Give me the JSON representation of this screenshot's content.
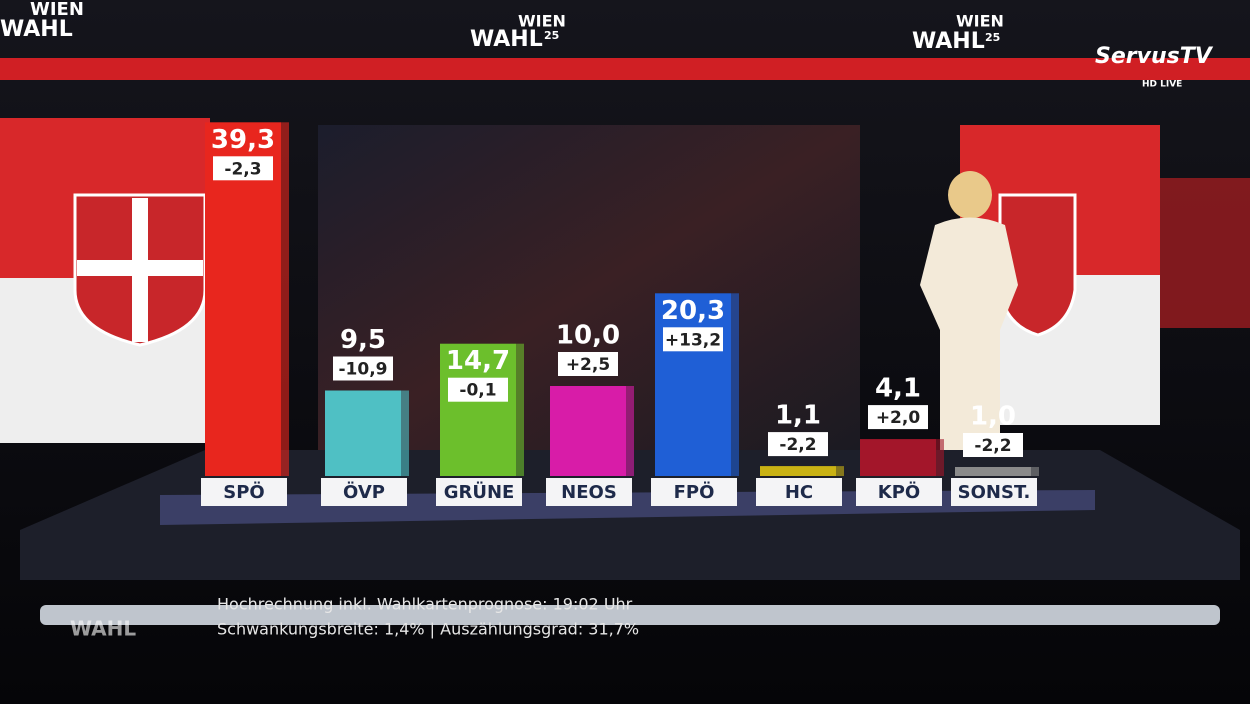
{
  "chart_data": {
    "type": "bar",
    "categories": [
      "SPÖ",
      "ÖVP",
      "GRÜNE",
      "NEOS",
      "FPÖ",
      "HC",
      "KPÖ",
      "SONST."
    ],
    "values": [
      39.3,
      9.5,
      14.7,
      10.0,
      20.3,
      1.1,
      4.1,
      1.0
    ],
    "value_labels": [
      "39,3",
      "9,5",
      "14,7",
      "10,0",
      "20,3",
      "1,1",
      "4,1",
      "1,0"
    ],
    "changes": [
      -2.3,
      -10.9,
      -0.1,
      2.5,
      13.2,
      -2.2,
      2.0,
      -2.2
    ],
    "change_labels": [
      "-2,3",
      "-10,9",
      "-0,1",
      "+2,5",
      "+13,2",
      "-2,2",
      "+2,0",
      "-2,2"
    ],
    "colors": [
      "#e8261e",
      "#4fc0c4",
      "#6cbf2c",
      "#d81ca8",
      "#1f5fd6",
      "#c9b214",
      "#a3162a",
      "#8a8a8a"
    ]
  },
  "branding": {
    "logo_top": "WIEN",
    "logo_bottom": "WAHL",
    "logo_year": "25",
    "channel": "ServusTV",
    "channel_badge": "HD LIVE"
  },
  "footer": {
    "line1": "Hochrechnung inkl. Wahlkartenprognose: 19:02 Uhr",
    "line2": "Schwankungsbreite: 1,4% | Auszählungsgrad: 31,7%"
  }
}
